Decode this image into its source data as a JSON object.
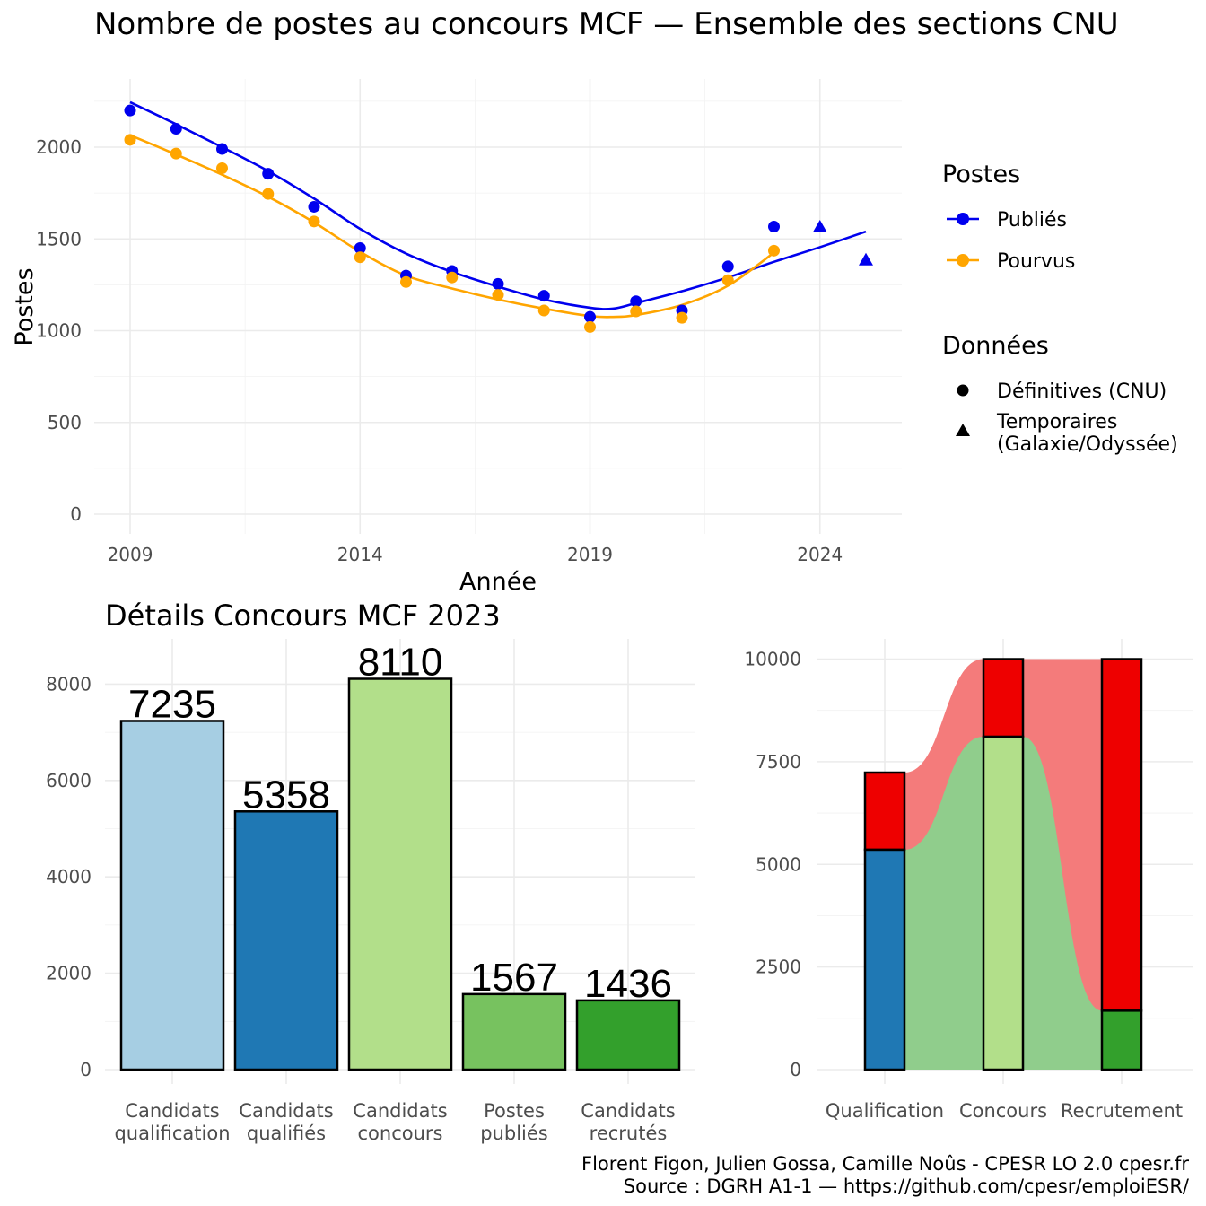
{
  "caption": {
    "line1": "Florent Figon, Julien Gossa, Camille Noûs - CPESR LO 2.0 cpesr.fr",
    "line2": "Source : DGRH A1-1 — https://github.com/cpesr/emploiESR/"
  },
  "chart_data": [
    {
      "type": "line",
      "title": "Nombre de postes au concours MCF —  Ensemble des sections CNU",
      "xlabel": "Année",
      "ylabel": "Postes",
      "xlim": [
        2009,
        2025
      ],
      "ylim": [
        0,
        2250
      ],
      "x_ticks": [
        2009,
        2014,
        2019,
        2024
      ],
      "y_ticks": [
        0,
        500,
        1000,
        1500,
        2000
      ],
      "grid": true,
      "legend_position": "right",
      "legend": {
        "postes_title": "Postes",
        "donnees_title": "Données",
        "definitives_label": "Définitives (CNU)",
        "temporaires_label_1": "Temporaires",
        "temporaires_label_2": "(Galaxie/Odyssée)"
      },
      "series": [
        {
          "name": "Publiés",
          "color": "#0000ee",
          "points": [
            {
              "x": 2009,
              "y": 2200,
              "kind": "Définitives (CNU)"
            },
            {
              "x": 2010,
              "y": 2100,
              "kind": "Définitives (CNU)"
            },
            {
              "x": 2011,
              "y": 1990,
              "kind": "Définitives (CNU)"
            },
            {
              "x": 2012,
              "y": 1855,
              "kind": "Définitives (CNU)"
            },
            {
              "x": 2013,
              "y": 1675,
              "kind": "Définitives (CNU)"
            },
            {
              "x": 2014,
              "y": 1450,
              "kind": "Définitives (CNU)"
            },
            {
              "x": 2015,
              "y": 1300,
              "kind": "Définitives (CNU)"
            },
            {
              "x": 2016,
              "y": 1325,
              "kind": "Définitives (CNU)"
            },
            {
              "x": 2017,
              "y": 1255,
              "kind": "Définitives (CNU)"
            },
            {
              "x": 2018,
              "y": 1190,
              "kind": "Définitives (CNU)"
            },
            {
              "x": 2019,
              "y": 1075,
              "kind": "Définitives (CNU)"
            },
            {
              "x": 2020,
              "y": 1160,
              "kind": "Définitives (CNU)"
            },
            {
              "x": 2021,
              "y": 1110,
              "kind": "Définitives (CNU)"
            },
            {
              "x": 2022,
              "y": 1350,
              "kind": "Définitives (CNU)"
            },
            {
              "x": 2023,
              "y": 1567,
              "kind": "Définitives (CNU)"
            },
            {
              "x": 2024,
              "y": 1565,
              "kind": "Temporaires (Galaxie/Odyssée)"
            },
            {
              "x": 2025,
              "y": 1385,
              "kind": "Temporaires (Galaxie/Odyssée)"
            }
          ],
          "smooth": [
            [
              2009,
              2245
            ],
            [
              2010,
              2125
            ],
            [
              2011,
              2000
            ],
            [
              2012,
              1870
            ],
            [
              2013,
              1720
            ],
            [
              2014,
              1555
            ],
            [
              2015,
              1420
            ],
            [
              2016,
              1320
            ],
            [
              2017,
              1240
            ],
            [
              2018,
              1170
            ],
            [
              2019,
              1125
            ],
            [
              2019.5,
              1120
            ],
            [
              2020,
              1150
            ],
            [
              2021,
              1215
            ],
            [
              2022,
              1290
            ],
            [
              2023,
              1375
            ],
            [
              2024,
              1455
            ],
            [
              2025,
              1540
            ]
          ]
        },
        {
          "name": "Pourvus",
          "color": "#ffa500",
          "points": [
            {
              "x": 2009,
              "y": 2040,
              "kind": "Définitives (CNU)"
            },
            {
              "x": 2010,
              "y": 1965,
              "kind": "Définitives (CNU)"
            },
            {
              "x": 2011,
              "y": 1885,
              "kind": "Définitives (CNU)"
            },
            {
              "x": 2012,
              "y": 1745,
              "kind": "Définitives (CNU)"
            },
            {
              "x": 2013,
              "y": 1595,
              "kind": "Définitives (CNU)"
            },
            {
              "x": 2014,
              "y": 1400,
              "kind": "Définitives (CNU)"
            },
            {
              "x": 2015,
              "y": 1265,
              "kind": "Définitives (CNU)"
            },
            {
              "x": 2016,
              "y": 1290,
              "kind": "Définitives (CNU)"
            },
            {
              "x": 2017,
              "y": 1195,
              "kind": "Définitives (CNU)"
            },
            {
              "x": 2018,
              "y": 1110,
              "kind": "Définitives (CNU)"
            },
            {
              "x": 2019,
              "y": 1020,
              "kind": "Définitives (CNU)"
            },
            {
              "x": 2020,
              "y": 1105,
              "kind": "Définitives (CNU)"
            },
            {
              "x": 2021,
              "y": 1070,
              "kind": "Définitives (CNU)"
            },
            {
              "x": 2022,
              "y": 1275,
              "kind": "Définitives (CNU)"
            },
            {
              "x": 2023,
              "y": 1436,
              "kind": "Définitives (CNU)"
            }
          ],
          "smooth": [
            [
              2009,
              2065
            ],
            [
              2010,
              1960
            ],
            [
              2011,
              1850
            ],
            [
              2012,
              1730
            ],
            [
              2013,
              1590
            ],
            [
              2014,
              1430
            ],
            [
              2015,
              1300
            ],
            [
              2016,
              1230
            ],
            [
              2017,
              1170
            ],
            [
              2018,
              1120
            ],
            [
              2019,
              1080
            ],
            [
              2019.5,
              1075
            ],
            [
              2020,
              1085
            ],
            [
              2021,
              1140
            ],
            [
              2022,
              1245
            ],
            [
              2023,
              1425
            ]
          ]
        }
      ]
    },
    {
      "type": "bar",
      "title": "Détails Concours MCF 2023",
      "categories": [
        [
          "Candidats",
          "qualification"
        ],
        [
          "Candidats",
          "qualifiés"
        ],
        [
          "Candidats",
          "concours"
        ],
        [
          "Postes",
          "publiés"
        ],
        [
          "Candidats",
          "recrutés"
        ]
      ],
      "values": [
        7235,
        5358,
        8110,
        1567,
        1436
      ],
      "data_labels": [
        "7235",
        "5358",
        "8110",
        "1567",
        "1436"
      ],
      "colors": [
        "#a6cee3",
        "#1f78b4",
        "#b2df8a",
        "#77c25f",
        "#33a02c"
      ],
      "ylim": [
        0,
        8700
      ],
      "y_ticks": [
        0,
        2000,
        4000,
        6000,
        8000
      ],
      "grid": true
    },
    {
      "type": "bar",
      "subtype": "stacked-flow",
      "categories": [
        "Qualification",
        "Concours",
        "Recrutement"
      ],
      "stacks": [
        {
          "category": "Qualification",
          "segments": [
            {
              "value": 5358,
              "color": "#1f78b4"
            },
            {
              "value": 1877,
              "color": "#ee0000"
            }
          ]
        },
        {
          "category": "Concours",
          "segments": [
            {
              "value": 8110,
              "color": "#b2df8a"
            },
            {
              "value": 1890,
              "color": "#ee0000"
            }
          ]
        },
        {
          "category": "Recrutement",
          "segments": [
            {
              "value": 1436,
              "color": "#33a02c"
            },
            {
              "value": 8564,
              "color": "#ee0000"
            }
          ]
        }
      ],
      "flows": {
        "green": {
          "color": "#90cd8c",
          "values": [
            5358,
            8110,
            1436
          ]
        },
        "red": {
          "color": "#f47b7b",
          "values": [
            7235,
            10000,
            10000
          ]
        }
      },
      "ylim": [
        0,
        10450
      ],
      "y_ticks": [
        0,
        2500,
        5000,
        7500,
        10000
      ],
      "grid": true
    }
  ]
}
